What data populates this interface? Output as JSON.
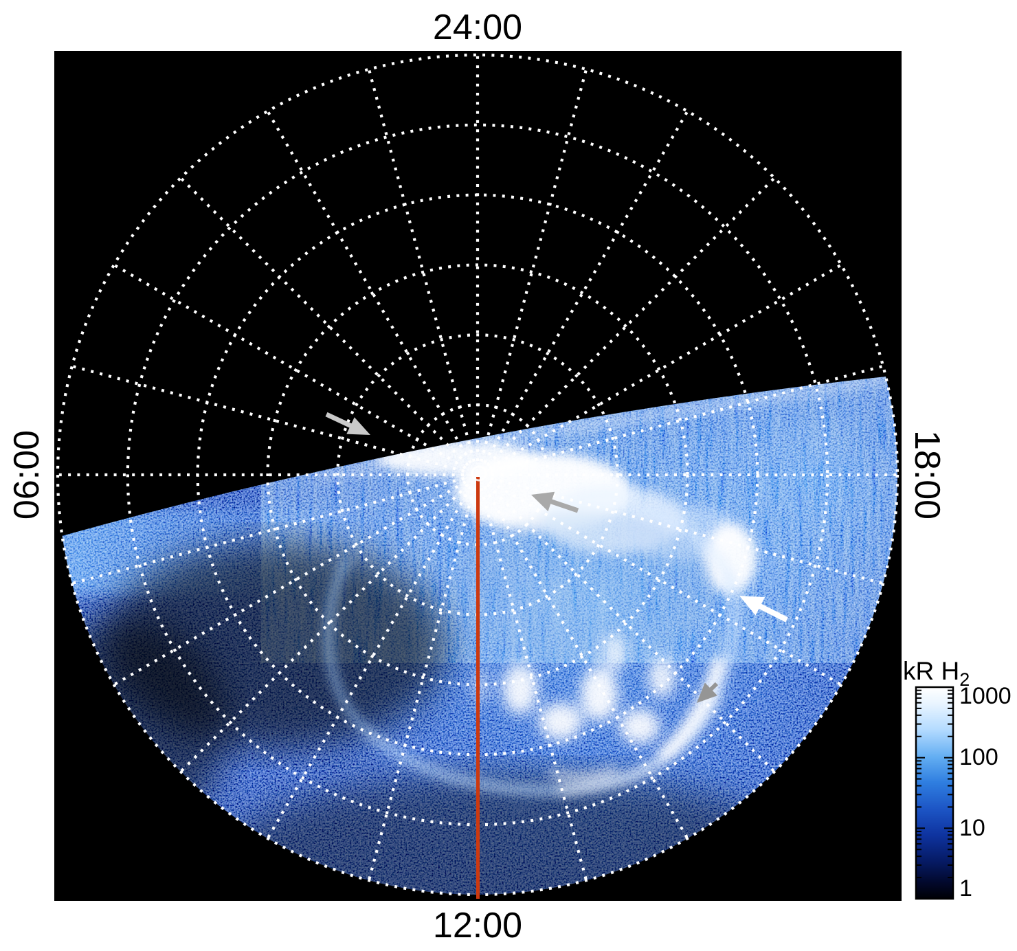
{
  "figure": {
    "description": "Polar projection image of planetary H2 auroral emission in local time coordinates",
    "background_color": "#ffffff",
    "panel_color": "#000000"
  },
  "axis_labels": {
    "top": "24:00",
    "right": "18:00",
    "bottom": "12:00",
    "left": "06:00"
  },
  "grid": {
    "style": "dotted",
    "color": "#ffffff",
    "radial_circles": 6,
    "spoke_count": 24,
    "spoke_step_deg": 15
  },
  "colorbar": {
    "title": "kR H",
    "title_subscript": "2",
    "tick_labels": [
      "1000",
      "100",
      "10",
      "1"
    ],
    "tick_values": [
      1000,
      100,
      10,
      1
    ],
    "scale": "log",
    "top_color": "#ffffff",
    "bottom_color": "#000000"
  },
  "annotations": {
    "meridian_line": {
      "name": "noon-meridian-line",
      "color": "#cc3910",
      "from": "pole (center)",
      "to": "12:00 edge (bottom)"
    },
    "arrows": [
      {
        "name": "terminator-arrow",
        "color": "#c9c9c9",
        "points_at": "dawn-side terminator boundary (upper left)"
      },
      {
        "name": "polar-emission-arrow",
        "color": "#a9a9a9",
        "points_at": "bright polar emission duskward of noon meridian"
      },
      {
        "name": "dusk-arc-arrow",
        "color": "#ffffff",
        "points_at": "gap at dusk-side arc near 18:00"
      },
      {
        "name": "oval-arc-arrow",
        "color": "#959595",
        "points_at": "bright main-oval arc segment (lower right)"
      }
    ]
  },
  "chart_data": {
    "type": "heatmap",
    "projection": "polar local-time view of the pole: 24:00 at top, 12:00 at bottom, 06:00 at left, 18:00 at right",
    "quantity": "auroral H2 emission brightness",
    "units": "kR H2",
    "color_scale": {
      "scale": "log",
      "min": 1,
      "max": 1000,
      "tick_values": [
        1,
        10,
        100,
        1000
      ],
      "colormap": "black -> dark blue -> blue -> white"
    },
    "grid": {
      "radial_circles": 6,
      "azimuthal_spoke_step_deg": 15
    },
    "annotations": [
      {
        "type": "line",
        "label": "12:00 meridian reference line",
        "color": "red-orange"
      },
      {
        "type": "arrow",
        "color": "light gray",
        "points_at": "terminator / data boundary on dawn side"
      },
      {
        "type": "arrow",
        "color": "gray",
        "points_at": "bright near-pole emission just duskward of noon meridian"
      },
      {
        "type": "arrow",
        "color": "white",
        "points_at": "dusk-side auroral arc near 18:00"
      },
      {
        "type": "arrow",
        "color": "gray",
        "points_at": "bright main auroral oval arc segment near 15:00 sector"
      }
    ],
    "features": [
      "upper-left half beyond the terminator is black (no data / night side)",
      "sunlit region below terminator filled with speckled blue background emission (~1-10 kR)",
      "saturated white emission fan at the pole adjacent to the noon meridian (>1000 kR)",
      "bright white blob duskward of pole along the terminator",
      "main auroral oval ring of arcs around the 12:00 sector with bright white patches inside",
      "bright dusk-side spot where the arc reaches the terminator",
      "white comb-like fringe along the terminator boundary"
    ]
  }
}
